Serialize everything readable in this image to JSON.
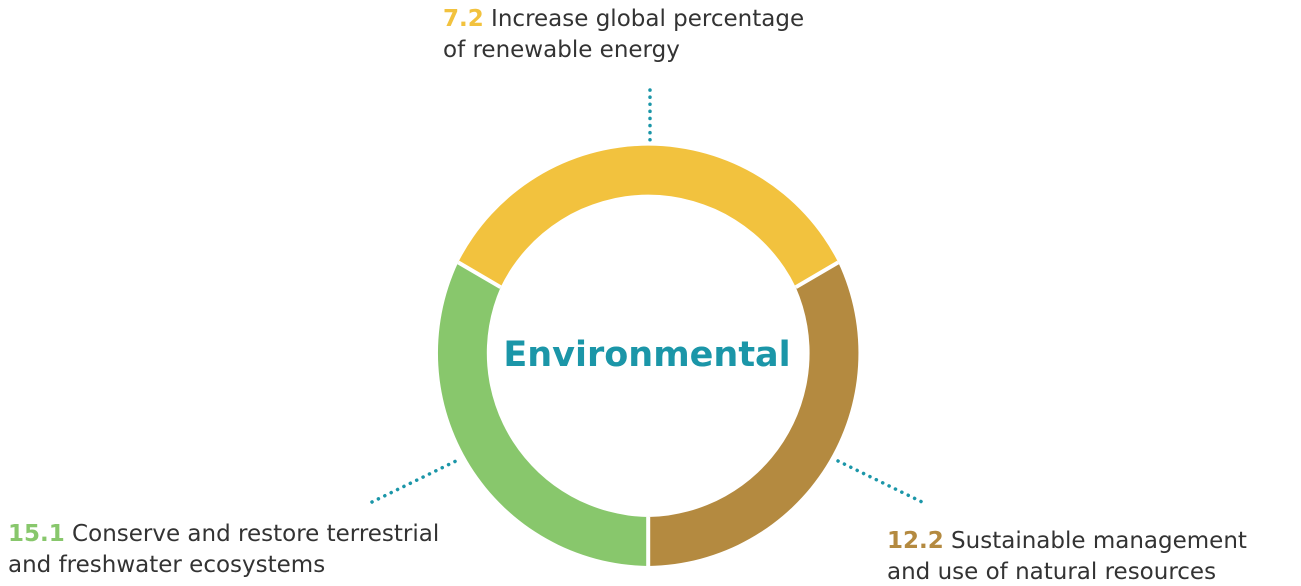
{
  "center_title": "Environmental",
  "colors": {
    "renewable": "#f2c23e",
    "resources": "#b48a40",
    "ecosystems": "#88c76c",
    "title": "#1b96a8",
    "connector": "#1b96a8",
    "text": "#333333"
  },
  "goals": {
    "top": {
      "number": "7.2",
      "line1": " Increase global percentage",
      "line2": "of renewable energy"
    },
    "left": {
      "number": "15.1",
      "line1": " Conserve and restore terrestrial",
      "line2": "and freshwater ecosystems"
    },
    "right": {
      "number": "12.2",
      "line1": " Sustainable management",
      "line2": "and use of natural resources"
    }
  }
}
